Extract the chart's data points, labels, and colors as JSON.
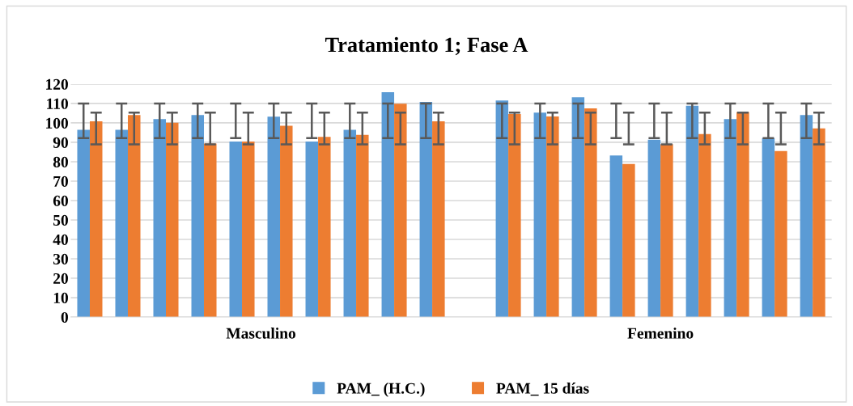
{
  "chart_data": {
    "type": "bar",
    "title": "Tratamiento 1; Fase A",
    "categories": [
      null,
      null,
      null,
      null,
      null,
      null,
      null,
      null,
      null,
      null,
      null,
      null,
      null,
      null,
      null,
      null,
      null,
      null,
      null,
      null
    ],
    "series": [
      {
        "name": "PAM_ (H.C.)",
        "color": "#5b9bd5",
        "values": [
          96.4,
          96.4,
          102,
          104,
          90.4,
          103.2,
          90.4,
          96.4,
          115.8,
          110.8,
          null,
          111.5,
          105.3,
          113.2,
          83.2,
          91.3,
          108.8,
          102,
          92.2,
          104
        ],
        "errors": [
          [
            92.2,
            110
          ],
          [
            92.2,
            110
          ],
          [
            92.2,
            110
          ],
          [
            92.2,
            110
          ],
          [
            92.2,
            110
          ],
          [
            92.2,
            110
          ],
          [
            92.2,
            110
          ],
          [
            92.2,
            110
          ],
          [
            92.2,
            110
          ],
          [
            92.2,
            110
          ],
          null,
          [
            92.2,
            110
          ],
          [
            92.2,
            110
          ],
          [
            92.2,
            110
          ],
          [
            92.2,
            110
          ],
          [
            92.2,
            110
          ],
          [
            92.2,
            110
          ],
          [
            92.2,
            110
          ],
          [
            92.2,
            110
          ],
          [
            92.2,
            110
          ]
        ]
      },
      {
        "name": "PAM_ 15 días",
        "color": "#ed7d31",
        "values": [
          100.8,
          104,
          100.1,
          89.4,
          90.4,
          98.5,
          92.8,
          93.8,
          109.9,
          100.8,
          null,
          104.6,
          103.3,
          107.5,
          78.8,
          89,
          94.2,
          105.6,
          85.5,
          97.2
        ],
        "errors": [
          [
            88.9,
            105.3
          ],
          [
            88.9,
            105.3
          ],
          [
            88.9,
            105.3
          ],
          [
            88.9,
            105.3
          ],
          [
            88.9,
            105.3
          ],
          [
            88.9,
            105.3
          ],
          [
            88.9,
            105.3
          ],
          [
            88.9,
            105.3
          ],
          [
            88.9,
            105.3
          ],
          [
            88.9,
            105.3
          ],
          null,
          [
            88.9,
            105.3
          ],
          [
            88.9,
            105.3
          ],
          [
            88.9,
            105.3
          ],
          [
            88.9,
            105.3
          ],
          [
            88.9,
            105.3
          ],
          [
            88.9,
            105.3
          ],
          [
            88.9,
            105.3
          ],
          [
            88.9,
            105.3
          ],
          [
            88.9,
            105.3
          ]
        ]
      }
    ],
    "annotations": [
      "Masculino",
      "Femenino"
    ],
    "ylim": [
      0,
      120
    ],
    "yticks": [
      0,
      10,
      20,
      30,
      40,
      50,
      60,
      70,
      80,
      90,
      100,
      110,
      120
    ],
    "grid": "y",
    "legend": "bottom"
  }
}
